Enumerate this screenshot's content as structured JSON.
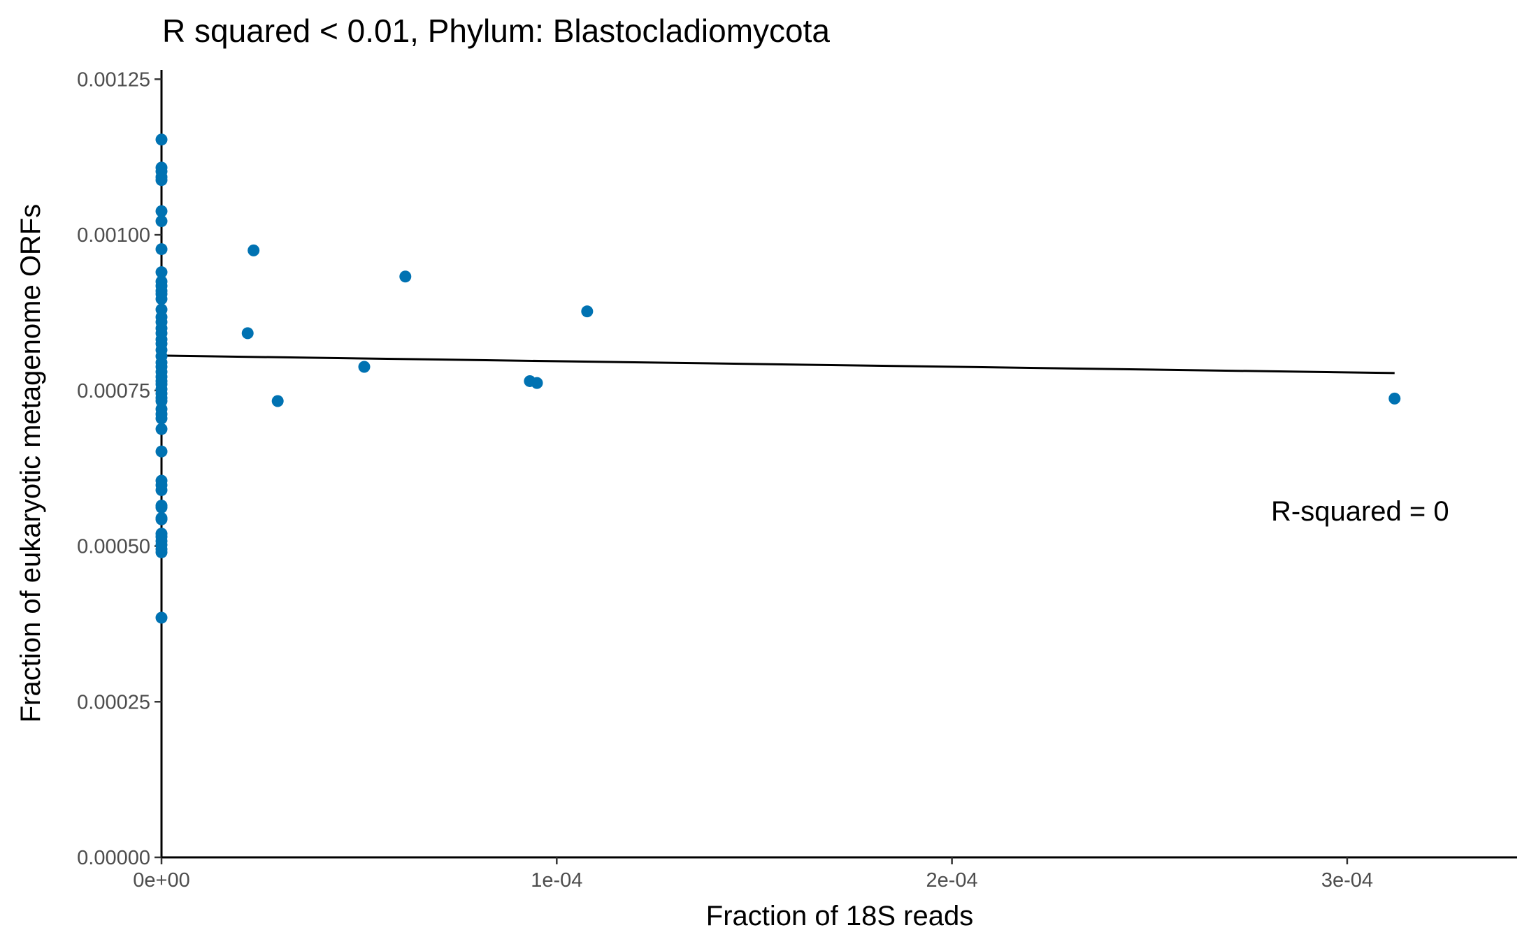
{
  "chart_data": {
    "type": "scatter",
    "title": "R squared < 0.01, Phylum:  Blastocladiomycota",
    "xlabel": "Fraction of 18S reads",
    "ylabel": "Fraction of eukaryotic metagenome ORFs",
    "xlim": [
      0,
      0.000343
    ],
    "ylim": [
      0,
      0.001265
    ],
    "x_ticks": [
      0,
      0.0001,
      0.0002,
      0.0003
    ],
    "x_tick_labels": [
      "0e+00",
      "1e-04",
      "2e-04",
      "3e-04"
    ],
    "y_ticks": [
      0,
      0.00025,
      0.0005,
      0.00075,
      0.001,
      0.00125
    ],
    "y_tick_labels": [
      "0.00000",
      "0.00025",
      "0.00050",
      "0.00075",
      "0.00100",
      "0.00125"
    ],
    "grid": false,
    "legend": "none",
    "point_color": "#0072b2",
    "line_color": "#000000",
    "annotation": "R-squared =  0",
    "series": [
      {
        "x": [
          0,
          0,
          0,
          0,
          0,
          0,
          0,
          0,
          0,
          0,
          0,
          0,
          0,
          0,
          0,
          0,
          0,
          0,
          0,
          0,
          0,
          0,
          0,
          0,
          0,
          0,
          0,
          0,
          0,
          0,
          0,
          0,
          0,
          0,
          0,
          0,
          0,
          0,
          0,
          0,
          0,
          0,
          0,
          0,
          0,
          0,
          0,
          0,
          0,
          0,
          0,
          0,
          2.33e-05,
          2.18e-05,
          6.17e-05,
          0.0001077,
          5.13e-05,
          9.32e-05,
          9.5e-05,
          2.94e-05,
          0.000312
        ],
        "y": [
          0.001153,
          0.001108,
          0.001102,
          0.001093,
          0.001088,
          0.001038,
          0.001022,
          0.000977,
          0.00094,
          0.000925,
          0.000918,
          0.00091,
          0.000905,
          0.000897,
          0.00088,
          0.000868,
          0.00085,
          0.000842,
          0.000832,
          0.000825,
          0.000815,
          0.000805,
          0.000795,
          0.000788,
          0.00078,
          0.000772,
          0.000765,
          0.00076,
          0.000752,
          0.000745,
          0.000738,
          0.000733,
          0.00072,
          0.000712,
          0.000705,
          0.000688,
          0.000652,
          0.000605,
          0.000598,
          0.00059,
          0.000565,
          0.000562,
          0.000545,
          0.000543,
          0.00052,
          0.000515,
          0.000508,
          0.000502,
          0.000495,
          0.00049,
          0.000385,
          0.00086,
          0.000975,
          0.000842,
          0.000933,
          0.000877,
          0.000788,
          0.000765,
          0.000762,
          0.000733,
          0.000737
        ]
      }
    ],
    "fit_line": {
      "x": [
        0,
        0.000312
      ],
      "y": [
        0.000806,
        0.000778
      ]
    }
  }
}
